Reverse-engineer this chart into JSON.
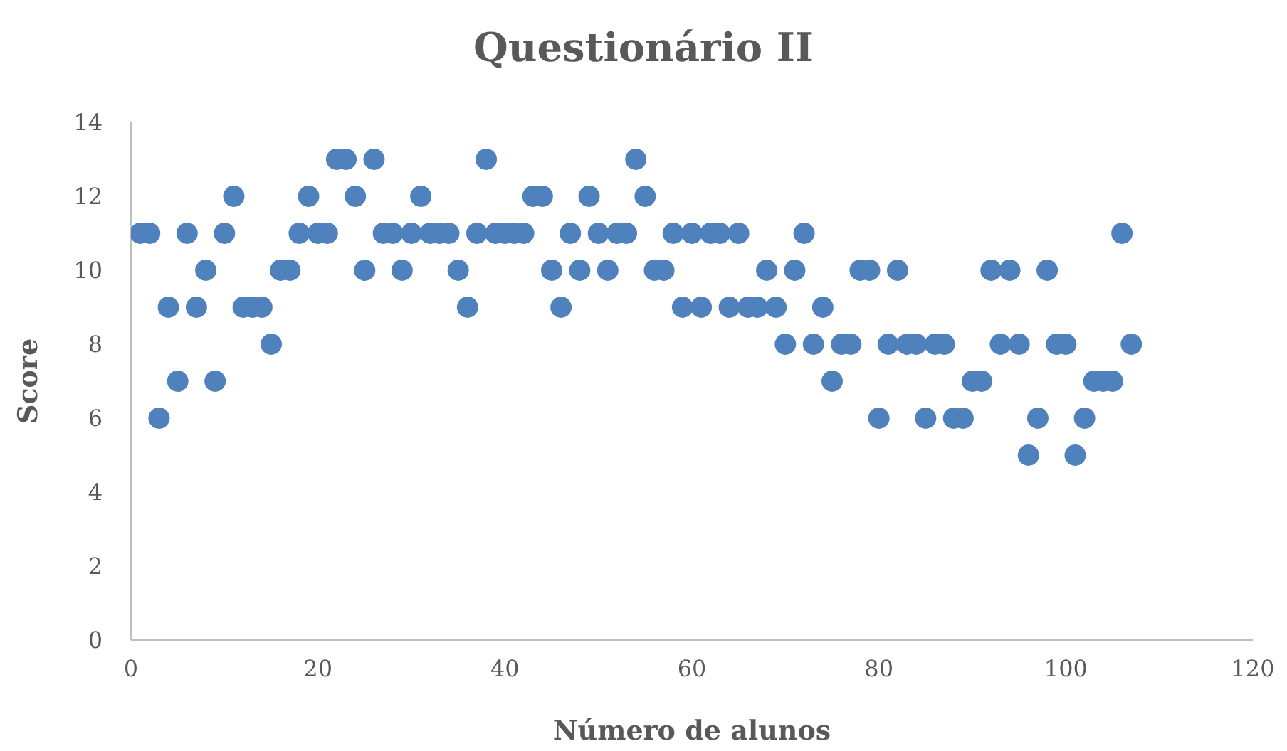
{
  "chart_data": {
    "type": "scatter",
    "title": "Questionário II",
    "xlabel": "Número de alunos",
    "ylabel": "Score",
    "x": [
      1,
      2,
      3,
      4,
      5,
      6,
      7,
      8,
      9,
      10,
      11,
      12,
      13,
      14,
      15,
      16,
      17,
      18,
      19,
      20,
      21,
      22,
      23,
      24,
      25,
      26,
      27,
      28,
      29,
      30,
      31,
      32,
      33,
      34,
      35,
      36,
      37,
      38,
      39,
      40,
      41,
      42,
      43,
      44,
      45,
      46,
      47,
      48,
      49,
      50,
      51,
      52,
      53,
      54,
      55,
      56,
      57,
      58,
      59,
      60,
      61,
      62,
      63,
      64,
      65,
      66,
      67,
      68,
      69,
      70,
      71,
      72,
      73,
      74,
      75,
      76,
      77,
      78,
      79,
      80,
      81,
      82,
      83,
      84,
      85,
      86,
      87,
      88,
      89,
      90,
      91,
      92,
      93,
      94,
      95,
      96,
      97,
      98,
      99,
      100,
      101,
      102,
      103,
      104,
      105,
      106,
      107
    ],
    "values": [
      11,
      11,
      6,
      9,
      7,
      11,
      9,
      10,
      7,
      11,
      12,
      9,
      9,
      9,
      8,
      10,
      10,
      11,
      12,
      11,
      11,
      13,
      13,
      12,
      10,
      13,
      11,
      11,
      10,
      11,
      12,
      11,
      11,
      11,
      10,
      9,
      11,
      13,
      11,
      11,
      11,
      11,
      12,
      12,
      10,
      9,
      11,
      10,
      12,
      11,
      10,
      11,
      11,
      13,
      12,
      10,
      10,
      11,
      9,
      11,
      9,
      11,
      11,
      9,
      11,
      9,
      9,
      10,
      9,
      8,
      10,
      11,
      8,
      9,
      7,
      8,
      8,
      10,
      10,
      6,
      8,
      10,
      8,
      8,
      6,
      8,
      8,
      6,
      6,
      7,
      7,
      10,
      8,
      10,
      8,
      5,
      6,
      10,
      8,
      8,
      5,
      6,
      7,
      7,
      7,
      11,
      8
    ],
    "color": "#4f81bd",
    "marker": "circle",
    "xlim": [
      0,
      120
    ],
    "xticks": [
      0,
      20,
      40,
      60,
      80,
      100,
      120
    ],
    "ylim": [
      0,
      14
    ],
    "yticks": [
      0,
      2,
      4,
      6,
      8,
      10,
      12,
      14
    ]
  }
}
